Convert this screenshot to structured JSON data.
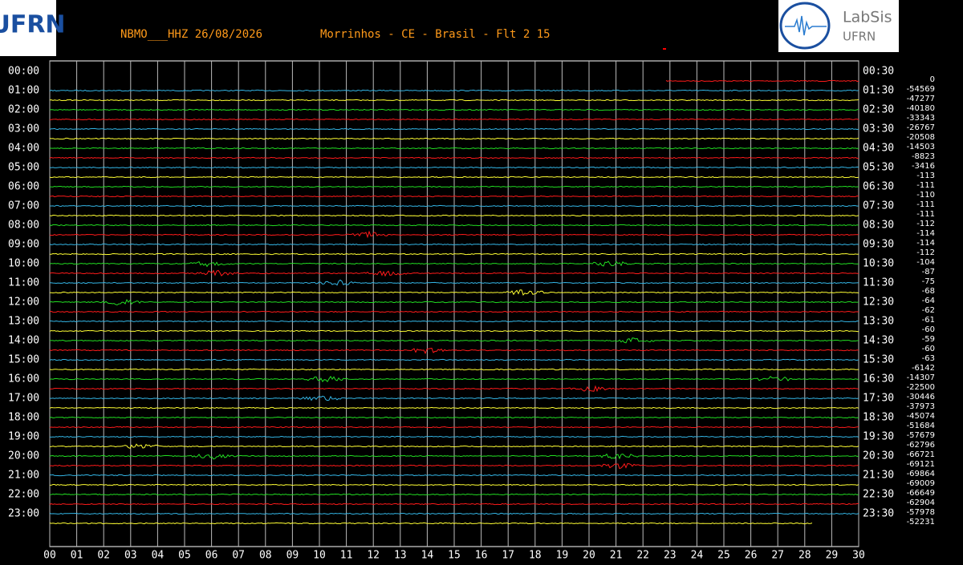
{
  "header": {
    "station": "NBMO___HHZ 26/08/2026",
    "location": "Morrinhos - CE - Brasil - Flt 2 15"
  },
  "logos": {
    "left": "UFRN",
    "right_title": "LabSis",
    "right_sub": "UFRN"
  },
  "left_labels": [
    "00:00",
    "01:00",
    "02:00",
    "03:00",
    "04:00",
    "05:00",
    "06:00",
    "07:00",
    "08:00",
    "09:00",
    "10:00",
    "11:00",
    "12:00",
    "13:00",
    "14:00",
    "15:00",
    "16:00",
    "17:00",
    "18:00",
    "19:00",
    "20:00",
    "21:00",
    "22:00",
    "23:00"
  ],
  "right_labels": [
    "00:30",
    "01:30",
    "02:30",
    "03:30",
    "04:30",
    "05:30",
    "06:30",
    "07:30",
    "08:30",
    "09:30",
    "10:30",
    "11:30",
    "12:30",
    "13:30",
    "14:30",
    "15:30",
    "16:30",
    "17:30",
    "18:30",
    "19:30",
    "20:30",
    "21:30",
    "22:30",
    "23:30"
  ],
  "offsets": [
    0,
    -54569,
    -47277,
    -40180,
    -33343,
    -26767,
    -20508,
    -14503,
    -8823,
    -3416,
    -113,
    -111,
    -110,
    -111,
    -111,
    -112,
    -114,
    -114,
    -112,
    -104,
    -87,
    -75,
    -68,
    -64,
    -62,
    -61,
    -60,
    -59,
    -60,
    -63,
    -6142,
    -14307,
    -22500,
    -30446,
    -37973,
    -45074,
    -51684,
    -57679,
    -62796,
    -66721,
    -69121,
    -69864,
    -69009,
    -66649,
    -62904,
    -57978,
    -52231
  ],
  "x_labels": [
    "00",
    "01",
    "02",
    "03",
    "04",
    "05",
    "06",
    "07",
    "08",
    "09",
    "10",
    "11",
    "12",
    "13",
    "14",
    "15",
    "16",
    "17",
    "18",
    "19",
    "20",
    "21",
    "22",
    "23",
    "24",
    "25",
    "26",
    "27",
    "28",
    "29",
    "30"
  ]
}
